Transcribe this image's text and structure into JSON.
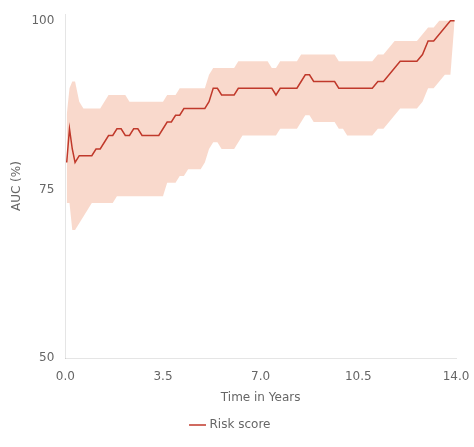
{
  "chart_data": {
    "type": "line",
    "xlabel": "Time in Years",
    "ylabel": "AUC (%)",
    "xlim": [
      0.0,
      14.0
    ],
    "ylim": [
      50,
      101
    ],
    "xticks": [
      {
        "value": 0.0,
        "label": "0.0"
      },
      {
        "value": 3.5,
        "label": "3.5"
      },
      {
        "value": 7.0,
        "label": "7.0"
      },
      {
        "value": 10.5,
        "label": "10.5"
      },
      {
        "value": 14.0,
        "label": "14.0"
      }
    ],
    "yticks": [
      50,
      75,
      100
    ],
    "grid": false,
    "legend": "bottom",
    "x": [
      0.05,
      0.15,
      0.25,
      0.35,
      0.5,
      0.65,
      0.8,
      0.95,
      1.1,
      1.25,
      1.4,
      1.55,
      1.7,
      1.85,
      2.0,
      2.15,
      2.3,
      2.45,
      2.6,
      2.75,
      2.9,
      3.05,
      3.2,
      3.35,
      3.5,
      3.65,
      3.8,
      3.95,
      4.1,
      4.25,
      4.4,
      4.55,
      4.7,
      4.85,
      5.0,
      5.15,
      5.3,
      5.45,
      5.6,
      5.75,
      5.9,
      6.05,
      6.2,
      6.35,
      6.5,
      6.65,
      6.8,
      6.95,
      7.1,
      7.25,
      7.4,
      7.55,
      7.7,
      7.85,
      8.0,
      8.15,
      8.3,
      8.45,
      8.6,
      8.75,
      8.9,
      9.05,
      9.2,
      9.35,
      9.5,
      9.65,
      9.8,
      9.95,
      10.1,
      10.25,
      10.4,
      10.55,
      10.7,
      10.85,
      11.0,
      11.2,
      11.4,
      11.6,
      11.8,
      12.0,
      12.2,
      12.4,
      12.6,
      12.8,
      13.0,
      13.2,
      13.4,
      13.6,
      13.8,
      13.95
    ],
    "series": [
      {
        "name": "Risk score",
        "color": "#c0392b",
        "values": [
          79,
          84,
          81,
          79,
          80,
          80,
          80,
          80,
          81,
          81,
          82,
          83,
          83,
          84,
          84,
          83,
          83,
          84,
          84,
          83,
          83,
          83,
          83,
          83,
          84,
          85,
          85,
          86,
          86,
          87,
          87,
          87,
          87,
          87,
          87,
          88,
          90,
          90,
          89,
          89,
          89,
          89,
          90,
          90,
          90,
          90,
          90,
          90,
          90,
          90,
          90,
          89,
          90,
          90,
          90,
          90,
          90,
          91,
          92,
          92,
          91,
          91,
          91,
          91,
          91,
          91,
          90,
          90,
          90,
          90,
          90,
          90,
          90,
          90,
          90,
          91,
          91,
          92,
          93,
          94,
          94,
          94,
          94,
          95,
          97,
          97,
          98,
          99,
          100,
          100
        ],
        "band": {
          "color": "#f0a080",
          "lower": [
            73,
            73,
            69,
            69,
            70,
            71,
            72,
            73,
            73,
            73,
            73,
            73,
            73,
            74,
            74,
            74,
            74,
            74,
            74,
            74,
            74,
            74,
            74,
            74,
            74,
            76,
            76,
            76,
            77,
            77,
            78,
            78,
            78,
            78,
            79,
            81,
            82,
            82,
            81,
            81,
            81,
            81,
            82,
            83,
            83,
            83,
            83,
            83,
            83,
            83,
            83,
            83,
            84,
            84,
            84,
            84,
            84,
            85,
            86,
            86,
            85,
            85,
            85,
            85,
            85,
            85,
            84,
            84,
            83,
            83,
            83,
            83,
            83,
            83,
            83,
            84,
            84,
            85,
            86,
            87,
            87,
            87,
            87,
            88,
            90,
            90,
            91,
            92,
            92,
            100
          ],
          "upper": [
            86,
            90,
            91,
            91,
            88,
            87,
            87,
            87,
            87,
            87,
            88,
            89,
            89,
            89,
            89,
            89,
            88,
            88,
            88,
            88,
            88,
            88,
            88,
            88,
            88,
            89,
            89,
            89,
            90,
            90,
            90,
            90,
            90,
            90,
            90,
            92,
            93,
            93,
            93,
            93,
            93,
            93,
            94,
            94,
            94,
            94,
            94,
            94,
            94,
            94,
            93,
            93,
            94,
            94,
            94,
            94,
            94,
            95,
            95,
            95,
            95,
            95,
            95,
            95,
            95,
            95,
            94,
            94,
            94,
            94,
            94,
            94,
            94,
            94,
            94,
            95,
            95,
            96,
            97,
            97,
            97,
            97,
            97,
            98,
            99,
            99,
            100,
            100,
            100,
            100
          ]
        }
      }
    ]
  }
}
